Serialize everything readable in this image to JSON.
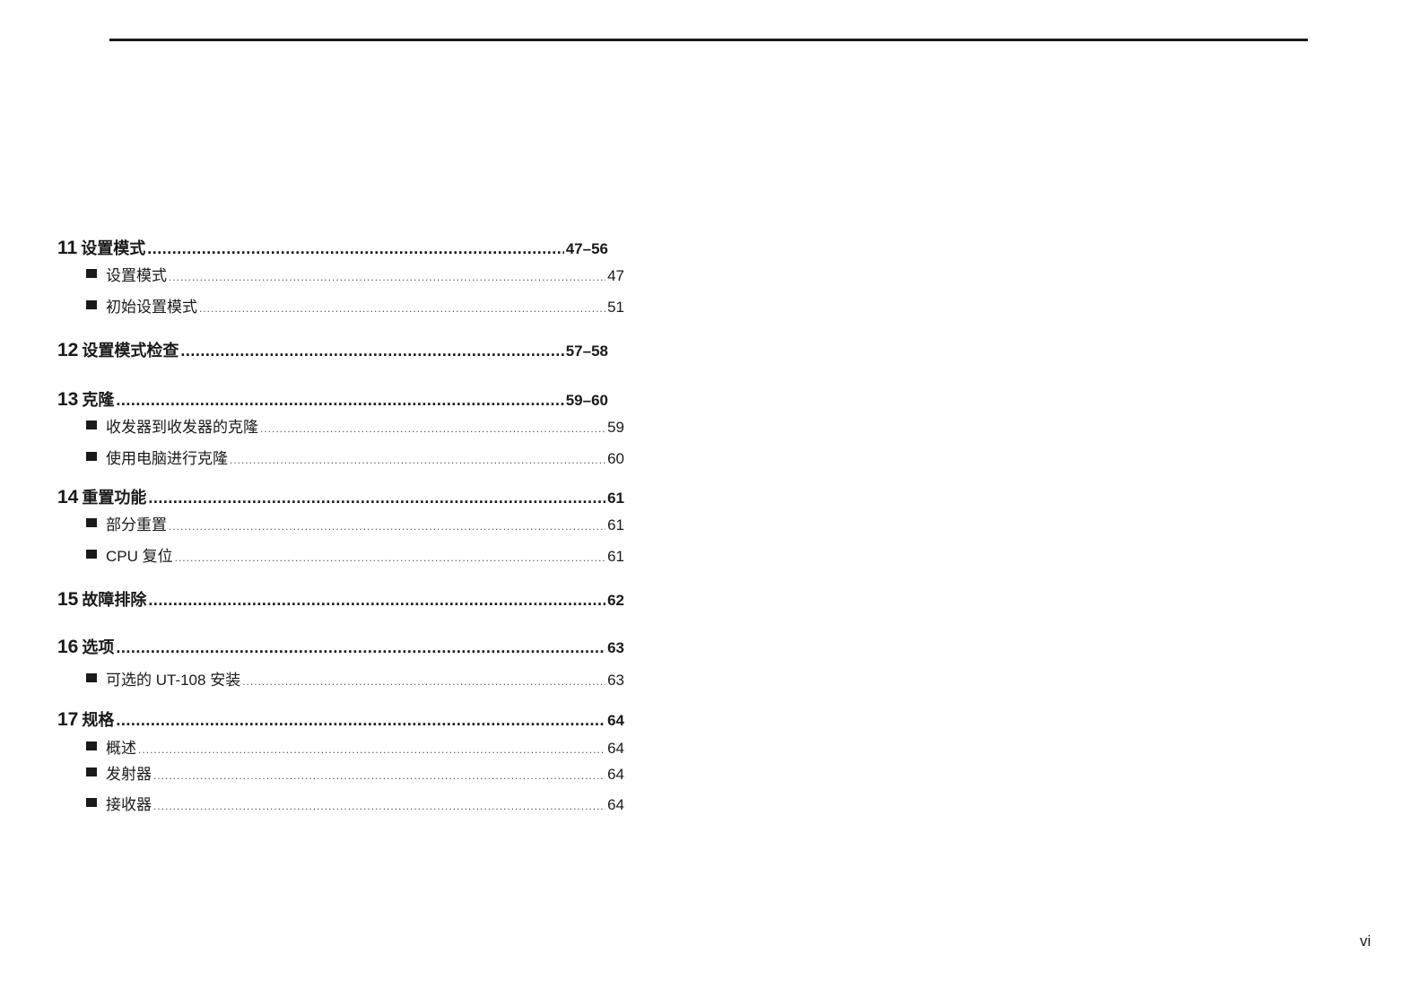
{
  "entries": [
    {
      "type": "chapter",
      "num": "11",
      "title": "设置模式",
      "page": "47–56"
    },
    {
      "type": "section",
      "title": "设置模式",
      "page": "47"
    },
    {
      "type": "section",
      "title": "初始设置模式",
      "page": "51"
    },
    {
      "type": "chapter",
      "num": "12",
      "title": "设置模式检查",
      "page": "57–58"
    },
    {
      "type": "chapter",
      "num": "13",
      "title": "克隆",
      "page": "59–60"
    },
    {
      "type": "section",
      "title": "收发器到收发器的克隆",
      "page": "59"
    },
    {
      "type": "section",
      "title": "使用电脑进行克隆",
      "page": "60"
    },
    {
      "type": "chapter",
      "num": "14",
      "title": "重置功能",
      "page": "61"
    },
    {
      "type": "section",
      "title": "部分重置",
      "page": "61"
    },
    {
      "type": "section",
      "title": "CPU 复位",
      "page": "61"
    },
    {
      "type": "chapter",
      "num": "15",
      "title": "故障排除",
      "page": "62"
    },
    {
      "type": "chapter",
      "num": "16",
      "title": "选项",
      "page": "63"
    },
    {
      "type": "section",
      "title": "可选的 UT-108 安装",
      "page": "63"
    },
    {
      "type": "chapter",
      "num": "17",
      "title": "规格",
      "page": "64"
    },
    {
      "type": "section",
      "title": "概述",
      "page": "64"
    },
    {
      "type": "section",
      "title": "发射器",
      "page": "64"
    },
    {
      "type": "section",
      "title": "接收器",
      "page": "64"
    }
  ],
  "page_number": "vi"
}
